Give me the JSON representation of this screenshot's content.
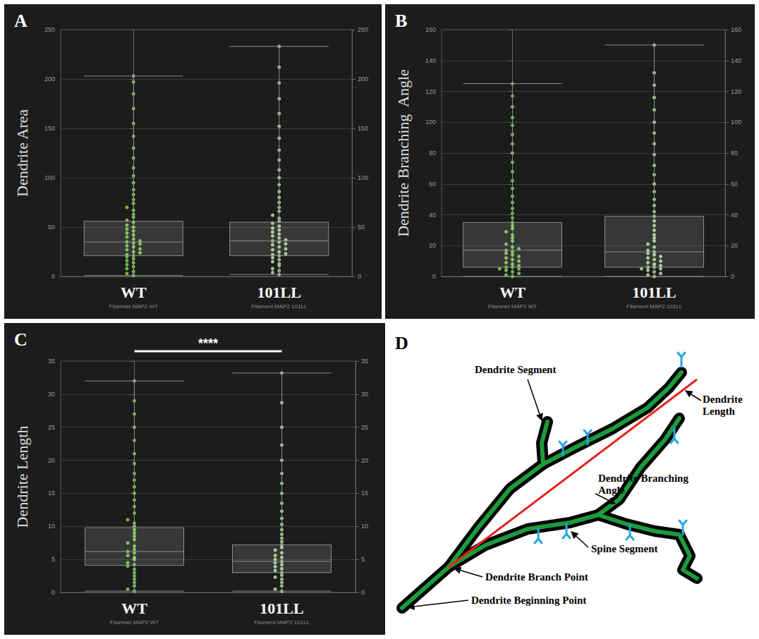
{
  "chart_data": [
    {
      "type": "boxplot",
      "panel": "A",
      "ylabel": "Dendrite Area",
      "categories": [
        "WT",
        "101LL"
      ],
      "category_sublabels": [
        "Filamnet MAP2 WT",
        "Filament MAP2 101LL"
      ],
      "colors": [
        "#86e35a",
        "#bff2a6"
      ],
      "boxes": [
        {
          "min": 1,
          "q1": 21,
          "median": 35,
          "q3": 56,
          "max": 203
        },
        {
          "min": 2,
          "q1": 21,
          "median": 36,
          "q3": 55,
          "max": 233
        }
      ],
      "points": [
        [
          1,
          3,
          5,
          8,
          10,
          12,
          14,
          16,
          18,
          20,
          21,
          22,
          24,
          25,
          27,
          28,
          30,
          31,
          33,
          34,
          35,
          36,
          38,
          40,
          42,
          44,
          46,
          48,
          50,
          52,
          55,
          57,
          60,
          63,
          67,
          70,
          74,
          78,
          83,
          88,
          95,
          102,
          110,
          120,
          130,
          142,
          155,
          170,
          185,
          197,
          203
        ],
        [
          2,
          4,
          6,
          8,
          11,
          13,
          15,
          17,
          19,
          21,
          22,
          23,
          25,
          27,
          28,
          30,
          32,
          33,
          35,
          36,
          37,
          39,
          41,
          43,
          45,
          47,
          49,
          51,
          54,
          56,
          59,
          62,
          66,
          70,
          75,
          80,
          86,
          93,
          100,
          108,
          118,
          128,
          140,
          152,
          165,
          180,
          196,
          212,
          233
        ]
      ],
      "ylim": [
        0,
        250
      ],
      "yticks": [
        0,
        50,
        100,
        150,
        200,
        250
      ],
      "grid": true
    },
    {
      "type": "boxplot",
      "panel": "B",
      "ylabel": "Dendrite Branching  Angle",
      "categories": [
        "WT",
        "101LL"
      ],
      "category_sublabels": [
        "Filamnet MAP2 WT",
        "Filament MAP2 101LL"
      ],
      "colors": [
        "#86e35a",
        "#bff2a6"
      ],
      "boxes": [
        {
          "min": 0,
          "q1": 6,
          "median": 17,
          "q3": 35,
          "max": 125
        },
        {
          "min": 0,
          "q1": 6,
          "median": 16,
          "q3": 39,
          "max": 150
        }
      ],
      "points": [
        [
          0,
          1,
          2,
          3,
          4,
          5,
          5,
          6,
          6,
          7,
          8,
          9,
          10,
          11,
          12,
          13,
          14,
          15,
          16,
          17,
          18,
          19,
          21,
          23,
          25,
          27,
          29,
          31,
          33,
          35,
          38,
          41,
          44,
          48,
          52,
          57,
          62,
          68,
          74,
          80,
          86,
          92,
          98,
          103,
          110,
          117,
          125
        ],
        [
          0,
          1,
          2,
          3,
          4,
          5,
          5,
          6,
          6,
          7,
          8,
          9,
          10,
          11,
          12,
          13,
          14,
          15,
          16,
          17,
          19,
          21,
          23,
          25,
          27,
          30,
          33,
          36,
          39,
          42,
          46,
          50,
          55,
          60,
          66,
          72,
          79,
          86,
          93,
          100,
          108,
          116,
          124,
          132,
          150
        ]
      ],
      "ylim": [
        0,
        160
      ],
      "yticks": [
        0,
        20,
        40,
        60,
        80,
        100,
        120,
        140,
        160
      ],
      "grid": true
    },
    {
      "type": "boxplot",
      "panel": "C",
      "ylabel": "Dendrite Length",
      "categories": [
        "WT",
        "101LL"
      ],
      "category_sublabels": [
        "Filamnet MAP2 WT",
        "Filament MAP2 101LL"
      ],
      "colors": [
        "#86e35a",
        "#bff2a6"
      ],
      "boxes": [
        {
          "min": 0.2,
          "q1": 4.1,
          "median": 6.2,
          "q3": 9.8,
          "max": 32
        },
        {
          "min": 0.2,
          "q1": 3,
          "median": 4.7,
          "q3": 7.2,
          "max": 33.2
        }
      ],
      "points": [
        [
          0.2,
          0.5,
          1,
          1.5,
          2,
          2.5,
          3,
          3.5,
          4,
          4.2,
          4.5,
          5,
          5.3,
          5.6,
          6,
          6.2,
          6.5,
          7,
          7.5,
          8,
          8.5,
          9,
          9.5,
          10,
          10.5,
          11,
          12,
          13,
          14,
          15,
          16,
          17,
          18,
          19.5,
          21,
          23,
          25,
          27,
          29,
          32
        ],
        [
          0.2,
          0.5,
          1,
          1.5,
          2,
          2.3,
          2.6,
          3,
          3.3,
          3.6,
          3.9,
          4.2,
          4.5,
          4.7,
          5,
          5.3,
          5.6,
          6,
          6.4,
          6.8,
          7.2,
          7.7,
          8.2,
          8.8,
          9.5,
          10.3,
          11.2,
          12.3,
          13.5,
          15,
          16.5,
          18,
          20,
          22.3,
          25,
          28.7,
          33.2
        ]
      ],
      "annotations": [
        {
          "text": "****",
          "from": "WT",
          "to": "101LL"
        }
      ],
      "ylim": [
        0,
        35
      ],
      "yticks": [
        0,
        5,
        10,
        15,
        20,
        25,
        30,
        35
      ],
      "grid": true
    }
  ],
  "diagram": {
    "panel": "D",
    "labels": {
      "segment": "Dendrite Segment",
      "length": "Dendrite Length",
      "angle": "Dendrite Branching Angle",
      "spine": "Spine Segment",
      "branch_point": "Dendrite Branch Point",
      "beginning_point": "Dendrite Beginning Point"
    }
  }
}
